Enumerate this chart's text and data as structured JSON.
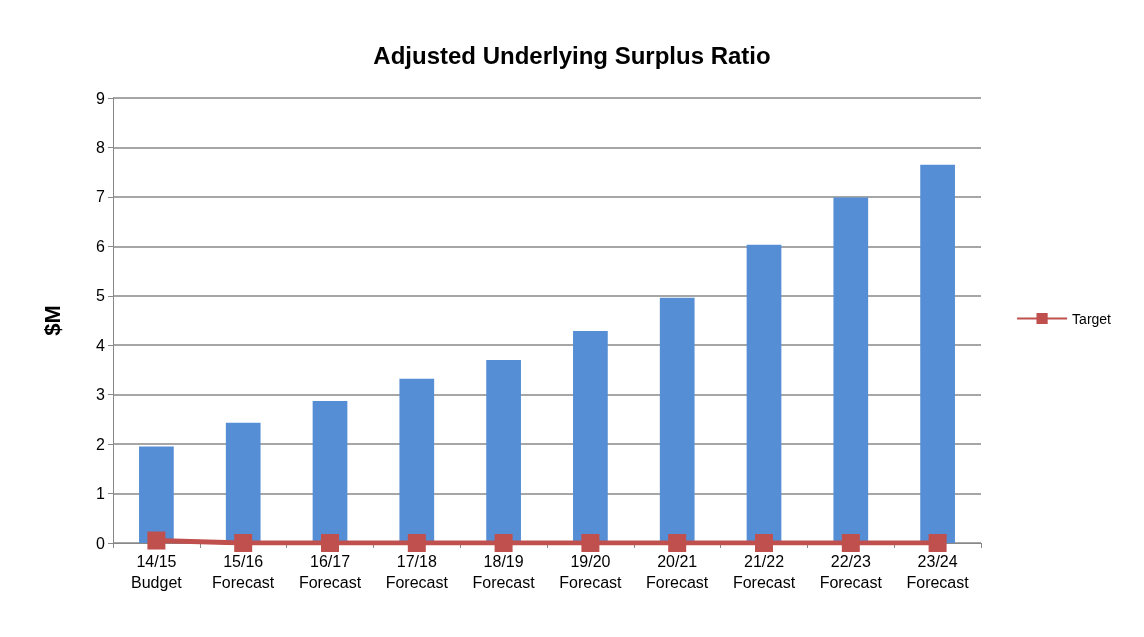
{
  "chart_data": {
    "type": "bar",
    "title": "Adjusted Underlying Surplus Ratio",
    "ylabel": "$M",
    "categories": [
      "14/15\nBudget",
      "15/16\nForecast",
      "16/17\nForecast",
      "17/18\nForecast",
      "18/19\nForecast",
      "19/20\nForecast",
      "20/21\nForecast",
      "21/22\nForecast",
      "22/23\nForecast",
      "23/24\nForecast"
    ],
    "series": [
      {
        "color": "#558ed5",
        "values": [
          1.95,
          2.43,
          2.87,
          3.32,
          3.7,
          4.29,
          4.96,
          6.03,
          6.99,
          7.65
        ]
      },
      {
        "type": "line",
        "name": "Target",
        "color": "#c0504d",
        "marker": "square",
        "values": [
          0.05,
          0,
          0,
          0,
          0,
          0,
          0,
          0,
          0,
          0
        ]
      }
    ],
    "ylim": [
      0,
      9
    ],
    "yticks": [
      0,
      1,
      2,
      3,
      4,
      5,
      6,
      7,
      8,
      9
    ],
    "grid": "y",
    "legend": "right"
  }
}
